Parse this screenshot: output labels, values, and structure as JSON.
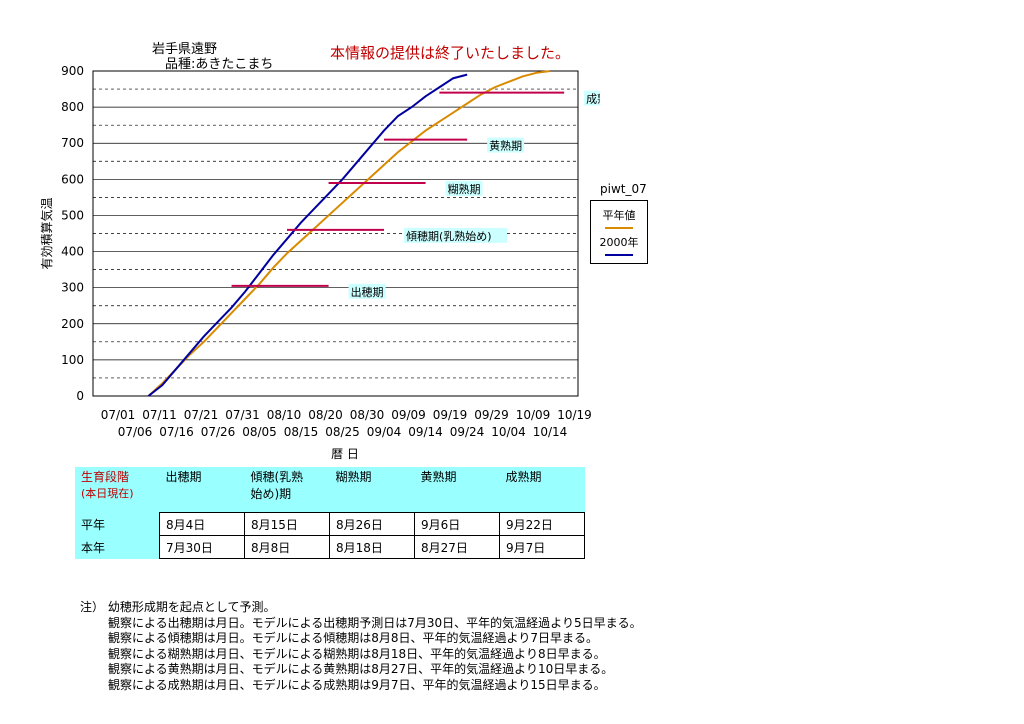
{
  "header": {
    "location": "岩手県遠野",
    "variety": "品種:あきたこまち",
    "notice": "本情報の提供は終了いたしました。"
  },
  "legend": {
    "title": "piwt_07",
    "items": [
      {
        "label": "平年値",
        "color": "#d98a00"
      },
      {
        "label": "2000年",
        "color": "#0000a0"
      }
    ]
  },
  "chart_data": {
    "type": "line",
    "ylabel": "有効積算気温",
    "xlabel": "暦 日",
    "ylim": [
      0,
      900
    ],
    "yticks": [
      0,
      100,
      200,
      300,
      400,
      500,
      600,
      700,
      800,
      900
    ],
    "grid": true,
    "legend_position": "right",
    "x_tick_labels_top": [
      "07/01",
      "07/11",
      "07/21",
      "07/31",
      "08/10",
      "08/20",
      "08/30",
      "09/09",
      "09/19",
      "09/29",
      "10/09",
      "10/19"
    ],
    "x_tick_labels_bottom": [
      "07/06",
      "07/16",
      "07/26",
      "08/05",
      "08/15",
      "08/25",
      "09/04",
      "09/14",
      "09/24",
      "10/04",
      "10/14"
    ],
    "x_days": [
      "07/01",
      "07/06",
      "07/11",
      "07/16",
      "07/21",
      "07/26",
      "07/31",
      "08/05",
      "08/10",
      "08/15",
      "08/20",
      "08/25",
      "08/30",
      "09/04",
      "09/09",
      "09/14",
      "09/19",
      "09/24",
      "09/29",
      "10/04",
      "10/09",
      "10/14",
      "10/19"
    ],
    "series": [
      {
        "name": "平年値",
        "color": "#d98a00",
        "points": [
          [
            4,
            0
          ],
          [
            5,
            35
          ],
          [
            6,
            75
          ],
          [
            7,
            115
          ],
          [
            8,
            150
          ],
          [
            9,
            190
          ],
          [
            10,
            230
          ],
          [
            11,
            270
          ],
          [
            12,
            310
          ],
          [
            13,
            355
          ],
          [
            14,
            395
          ],
          [
            15,
            430
          ],
          [
            16,
            465
          ],
          [
            17,
            500
          ],
          [
            18,
            535
          ],
          [
            19,
            570
          ],
          [
            20,
            605
          ],
          [
            21,
            640
          ],
          [
            22,
            675
          ],
          [
            23,
            705
          ],
          [
            24,
            735
          ],
          [
            25,
            760
          ],
          [
            26,
            785
          ],
          [
            27,
            810
          ],
          [
            28,
            835
          ],
          [
            29,
            855
          ],
          [
            30,
            870
          ],
          [
            31,
            885
          ],
          [
            32,
            895
          ],
          [
            33,
            900
          ]
        ]
      },
      {
        "name": "2000年",
        "color": "#0000a0",
        "points": [
          [
            4,
            0
          ],
          [
            5,
            30
          ],
          [
            6,
            75
          ],
          [
            7,
            120
          ],
          [
            8,
            165
          ],
          [
            9,
            205
          ],
          [
            10,
            245
          ],
          [
            11,
            290
          ],
          [
            12,
            340
          ],
          [
            13,
            390
          ],
          [
            14,
            435
          ],
          [
            15,
            480
          ],
          [
            16,
            520
          ],
          [
            17,
            560
          ],
          [
            18,
            600
          ],
          [
            19,
            645
          ],
          [
            20,
            690
          ],
          [
            21,
            735
          ],
          [
            22,
            775
          ],
          [
            23,
            800
          ],
          [
            24,
            830
          ],
          [
            25,
            855
          ],
          [
            26,
            880
          ],
          [
            27,
            890
          ]
        ]
      }
    ],
    "stage_markers": [
      {
        "label": "出穂期",
        "y": 305,
        "x_start": 10,
        "x_end": 17
      },
      {
        "label": "傾穂期(乳熟始め)",
        "y": 460,
        "x_start": 14,
        "x_end": 21
      },
      {
        "label": "糊熟期",
        "y": 590,
        "x_start": 17,
        "x_end": 24
      },
      {
        "label": "黄熟期",
        "y": 710,
        "x_start": 21,
        "x_end": 27
      },
      {
        "label": "成熟期",
        "y": 840,
        "x_start": 25,
        "x_end": 34
      }
    ]
  },
  "stage_table": {
    "corner_line1": "生育段階",
    "corner_line2": "(本日現在)",
    "headers": [
      {
        "line1": "出穂期",
        "line2": ""
      },
      {
        "line1": "傾穂(乳熟",
        "line2": "始め)期"
      },
      {
        "line1": "糊熟期",
        "line2": ""
      },
      {
        "line1": "黄熟期",
        "line2": ""
      },
      {
        "line1": "成熟期",
        "line2": ""
      }
    ],
    "rows": [
      {
        "label": "平年",
        "values": [
          "8月4日",
          "8月15日",
          "8月26日",
          "9月6日",
          "9月22日"
        ]
      },
      {
        "label": "本年",
        "values": [
          "7月30日",
          "8月8日",
          "8月18日",
          "8月27日",
          "9月7日"
        ]
      }
    ]
  },
  "notes": [
    "注）  幼穂形成期を起点として予測。",
    "観察による出穂期は月日。モデルによる出穂期予測日は7月30日、平年的気温経過より5日早まる。",
    "観察による傾穂期は月日。モデルによる傾穂期は8月8日、平年的気温経過より7日早まる。",
    "観察による糊熟期は月日、モデルによる糊熟期は8月18日、平年的気温経過より8日早まる。",
    "観察による黄熟期は月日、モデルによる黄熟期は8月27日、平年的気温経過より10日早まる。",
    "観察による成熟期は月日、モデルによる成熟期は9月7日、平年的気温経過より15日早まる。"
  ]
}
